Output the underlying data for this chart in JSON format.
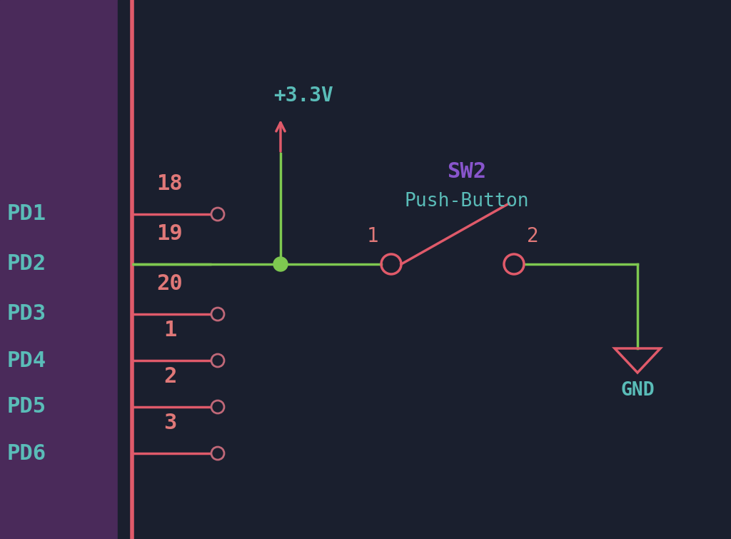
{
  "bg_color": "#1a1f2e",
  "bg_left_color": "#4a2a5a",
  "wire_green": "#7ec850",
  "wire_red": "#e05a6a",
  "text_teal": "#5abcb8",
  "text_purple": "#8855cc",
  "text_salmon": "#e07878",
  "pin_circle_color": "#c06878",
  "junction_color": "#7ec850",
  "vcc_label": "+3.3V",
  "gnd_label": "GND",
  "sw_label": "SW2",
  "sw_type": "Push-Button",
  "pd_labels": [
    "PD1",
    "PD2",
    "PD3",
    "PD4",
    "PD5",
    "PD6"
  ],
  "pin_numbers": [
    "18",
    "19",
    "20",
    "1",
    "2",
    "3"
  ],
  "active_pin_index": 1,
  "fig_width": 10.24,
  "fig_height": 7.55,
  "dpi": 100
}
